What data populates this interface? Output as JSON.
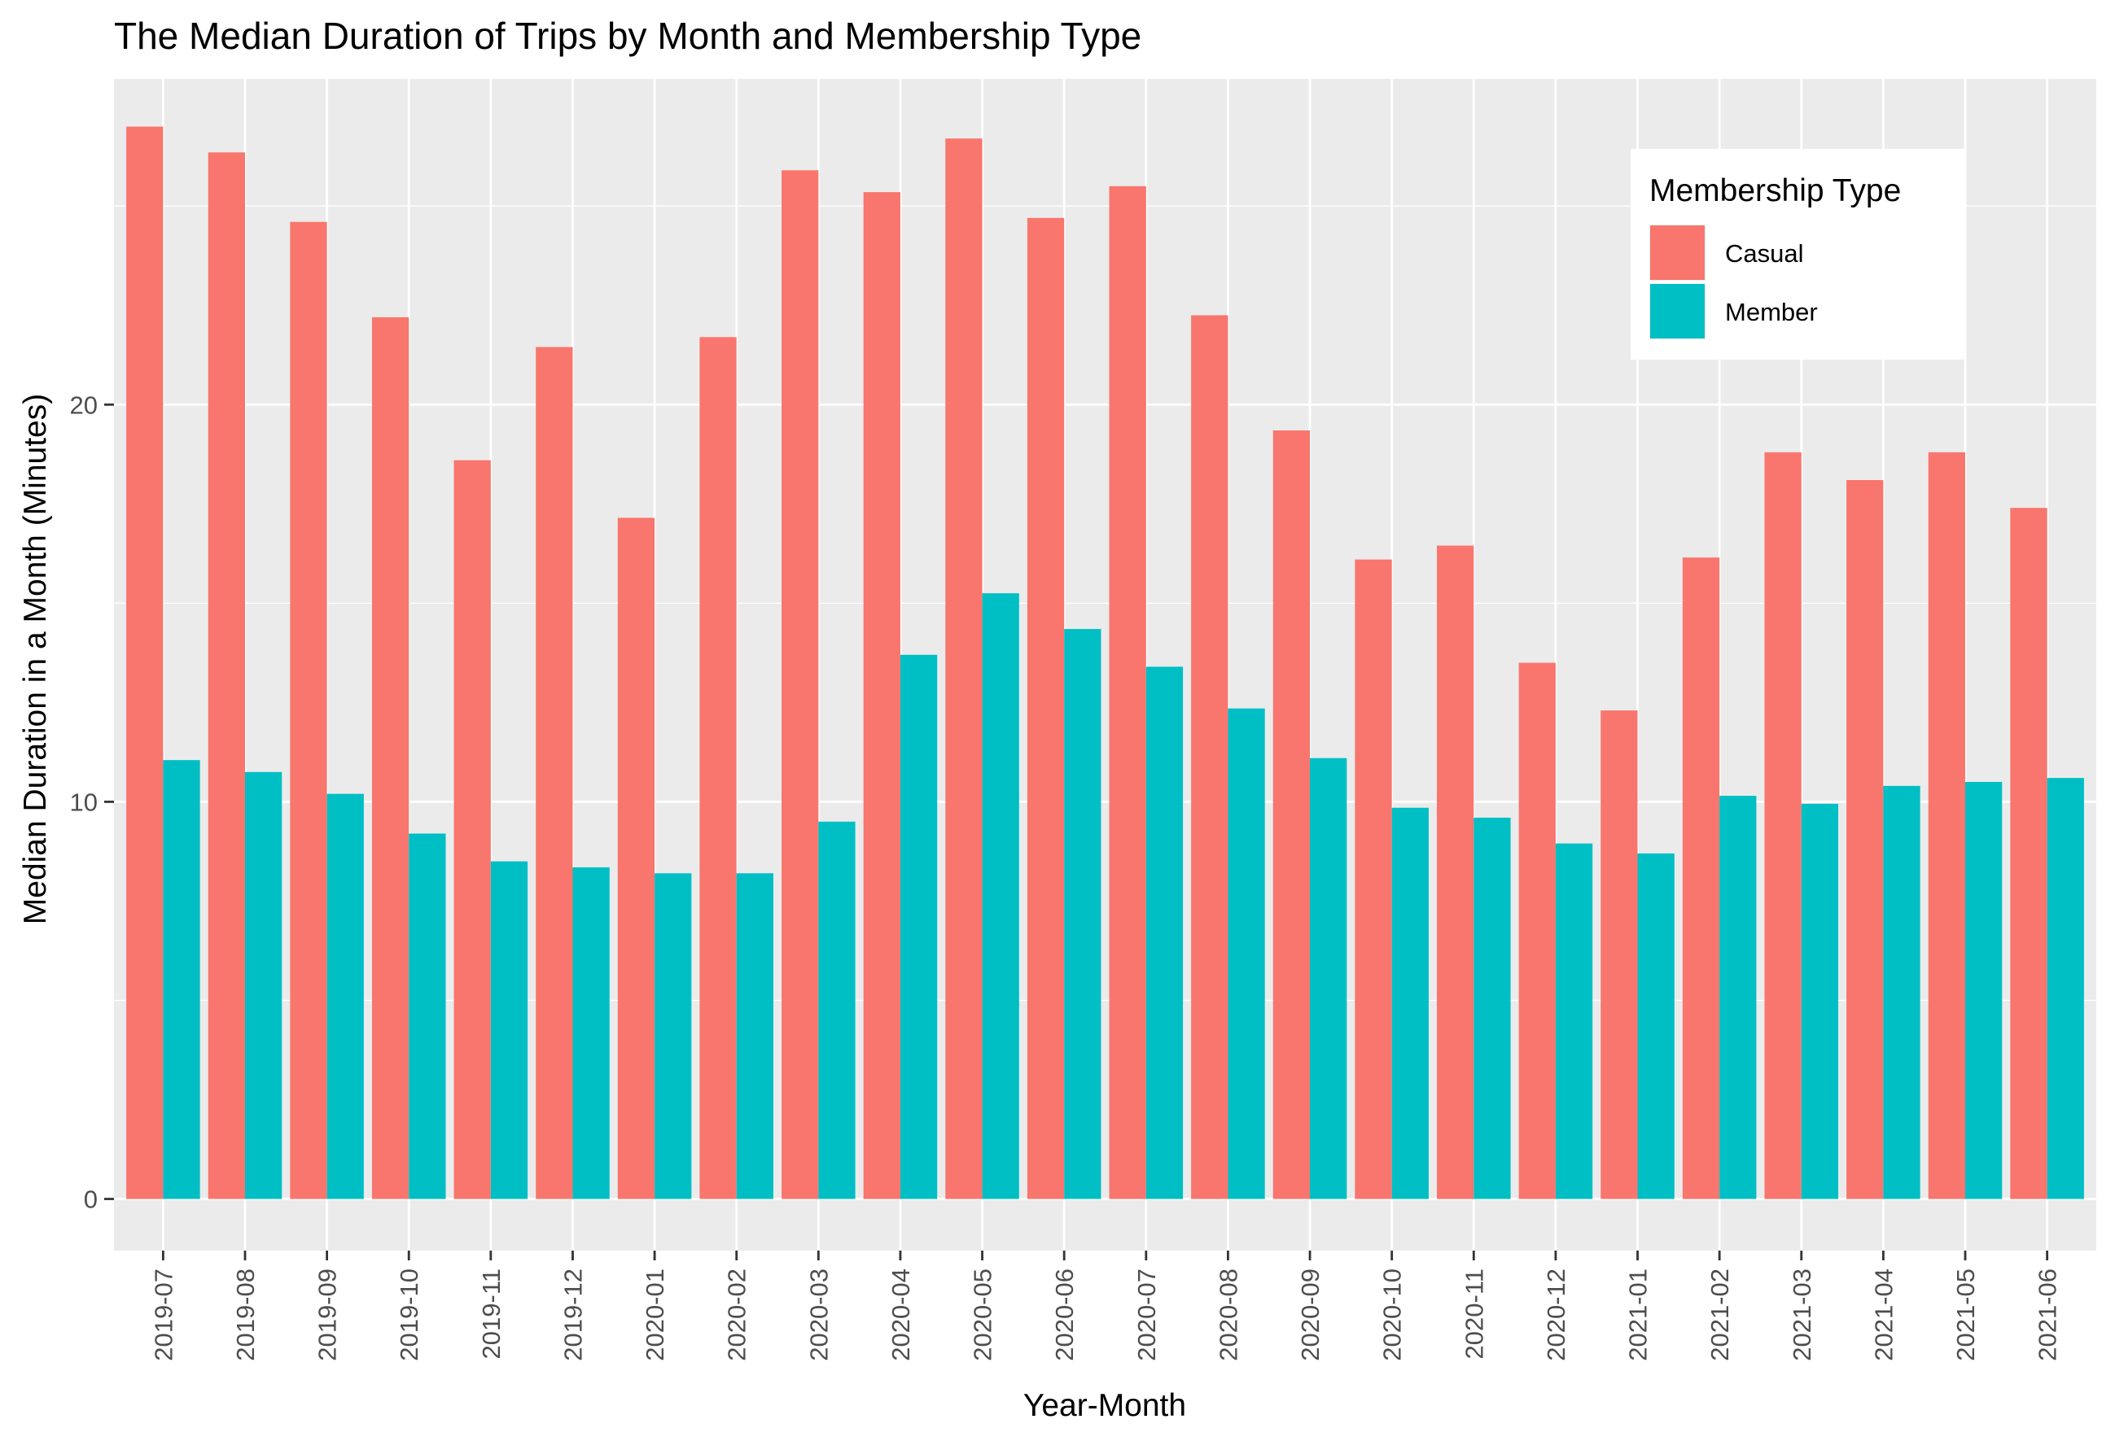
{
  "chart_data": {
    "type": "bar",
    "title": "The Median Duration of Trips by Month and Membership Type",
    "xlabel": "Year-Month",
    "ylabel": "Median Duration in a Month (Minutes)",
    "ylim": [
      -1.3,
      28.2
    ],
    "y_ticks": [
      0,
      10,
      20
    ],
    "grid": true,
    "legend": {
      "title": "Membership Type",
      "position": "top-right"
    },
    "categories": [
      "2019-07",
      "2019-08",
      "2019-09",
      "2019-10",
      "2019-11",
      "2019-12",
      "2020-01",
      "2020-02",
      "2020-03",
      "2020-04",
      "2020-05",
      "2020-06",
      "2020-07",
      "2020-08",
      "2020-09",
      "2020-10",
      "2020-11",
      "2020-12",
      "2021-01",
      "2021-02",
      "2021-03",
      "2021-04",
      "2021-05",
      "2021-06"
    ],
    "series": [
      {
        "name": "Casual",
        "color": "#F8766D",
        "values": [
          27.0,
          26.35,
          24.6,
          22.2,
          18.6,
          21.45,
          17.15,
          21.7,
          25.9,
          25.35,
          26.7,
          24.7,
          25.5,
          22.25,
          19.35,
          16.1,
          16.45,
          13.5,
          12.3,
          16.15,
          18.8,
          18.1,
          18.8,
          17.4
        ]
      },
      {
        "name": "Member",
        "color": "#00BFC4",
        "values": [
          11.05,
          10.75,
          10.2,
          9.2,
          8.5,
          8.35,
          8.2,
          8.2,
          9.5,
          13.7,
          15.25,
          14.35,
          13.4,
          12.35,
          11.1,
          9.85,
          9.6,
          8.95,
          8.7,
          10.15,
          9.95,
          10.4,
          10.5,
          10.6
        ]
      }
    ]
  }
}
